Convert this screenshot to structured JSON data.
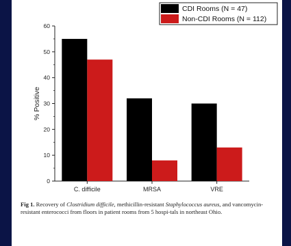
{
  "chart_data": {
    "type": "bar",
    "categories": [
      "C. difficile",
      "MRSA",
      "VRE"
    ],
    "series": [
      {
        "name": "CDI Rooms (N = 47)",
        "color": "#000000",
        "values": [
          55,
          32,
          30
        ]
      },
      {
        "name": "Non-CDI Rooms (N = 112)",
        "color": "#cc1b1b",
        "values": [
          47,
          8,
          13
        ]
      }
    ],
    "title": "",
    "xlabel": "",
    "ylabel": "% Positive",
    "ylim": [
      0,
      60
    ],
    "yticks": [
      0,
      10,
      20,
      30,
      40,
      50,
      60
    ],
    "legend": "top-right",
    "grid": false
  },
  "caption": {
    "label": "Fig 1.",
    "text": {
      "p1": " Recovery of ",
      "i1": "Clostridium difficile",
      "p2": ", methicillin-resistant ",
      "i2": "Staphylococcus aureus",
      "p3": ", and vancomycin-resistant enterococci from floors in patient rooms from 5 hospi-tals in northeast Ohio."
    }
  }
}
